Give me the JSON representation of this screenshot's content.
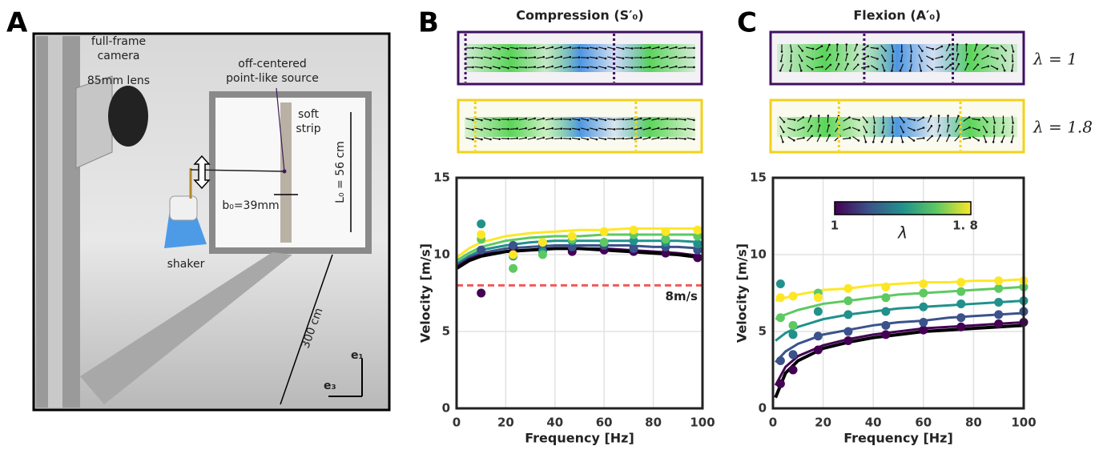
{
  "photo": {
    "panel": "A",
    "labels": [
      "full-frame",
      "camera",
      "85mm lens",
      "off-centered",
      "point-like source",
      "soft",
      "strip",
      "L₀ = 56 cm",
      "b₀=39mm",
      "shaker",
      "300 cm",
      "e₁",
      "e₃"
    ]
  },
  "chart_data": [
    {
      "type": "line",
      "panel": "B",
      "title": "Compression (S′₀)",
      "x_label": "Frequency [Hz]",
      "y_label": "Velocity [m/s]",
      "xlim": [
        0,
        100
      ],
      "xticks": [
        0,
        20,
        40,
        60,
        80,
        100
      ],
      "ylim": [
        0,
        15
      ],
      "yticks": [
        0,
        5,
        10,
        15
      ],
      "grid": true,
      "hline": 8,
      "hline_label": "8m/s",
      "hline_color": "#f05a5a",
      "x": [
        0,
        5,
        10,
        20,
        30,
        40,
        50,
        60,
        70,
        80,
        90,
        100
      ],
      "points_x": [
        10,
        23,
        35,
        47,
        60,
        72,
        85,
        98
      ],
      "series": [
        {
          "color": "#000000",
          "values": [
            9.1,
            9.6,
            9.9,
            10.2,
            10.3,
            10.4,
            10.4,
            10.3,
            10.2,
            10.1,
            10.0,
            9.8
          ]
        },
        {
          "color": "#440154",
          "values": [
            9.2,
            9.7,
            10.0,
            10.2,
            10.3,
            10.4,
            10.4,
            10.4,
            10.3,
            10.2,
            10.1,
            9.9
          ],
          "points": [
            7.5,
            10.5,
            10.4,
            10.2,
            10.3,
            10.2,
            10.1,
            9.8
          ]
        },
        {
          "color": "#3b528b",
          "values": [
            9.3,
            9.8,
            10.1,
            10.4,
            10.5,
            10.6,
            10.6,
            10.6,
            10.6,
            10.5,
            10.5,
            10.4
          ],
          "points": [
            10.3,
            10.6,
            10.6,
            10.5,
            10.6,
            10.4,
            10.5,
            10.3
          ]
        },
        {
          "color": "#21918c",
          "values": [
            9.4,
            9.9,
            10.3,
            10.6,
            10.8,
            10.9,
            10.9,
            10.9,
            10.9,
            10.9,
            10.9,
            10.8
          ],
          "points": [
            12.0,
            9.9,
            10.2,
            10.9,
            10.8,
            10.9,
            10.8,
            10.7
          ]
        },
        {
          "color": "#5ec962",
          "values": [
            9.6,
            10.1,
            10.5,
            10.9,
            11.1,
            11.2,
            11.2,
            11.3,
            11.3,
            11.3,
            11.3,
            11.3
          ],
          "points": [
            11.0,
            9.1,
            10.0,
            11.0,
            10.8,
            11.3,
            11.0,
            11.2
          ]
        },
        {
          "color": "#fde725",
          "values": [
            9.8,
            10.4,
            10.8,
            11.2,
            11.4,
            11.5,
            11.6,
            11.6,
            11.7,
            11.7,
            11.7,
            11.7
          ],
          "points": [
            11.3,
            10.0,
            10.8,
            11.2,
            11.5,
            11.6,
            11.5,
            11.6
          ]
        }
      ]
    },
    {
      "type": "line",
      "panel": "C",
      "title": "Flexion (A′₀)",
      "x_label": "Frequency [Hz]",
      "y_label": "Velocity [m/s]",
      "xlim": [
        0,
        100
      ],
      "xticks": [
        0,
        20,
        40,
        60,
        80,
        100
      ],
      "ylim": [
        0,
        15
      ],
      "yticks": [
        0,
        5,
        10,
        15
      ],
      "grid": true,
      "inset_labels": [
        "λ = 1",
        "λ = 1.8"
      ],
      "colorbar": {
        "tick_labels": [
          "1",
          "1. 8"
        ],
        "label": "λ"
      },
      "x": [
        1,
        5,
        10,
        20,
        30,
        40,
        50,
        60,
        70,
        80,
        90,
        100
      ],
      "points_x": [
        3,
        8,
        18,
        30,
        45,
        60,
        75,
        90,
        100
      ],
      "series": [
        {
          "color": "#000000",
          "values": [
            0.7,
            2.3,
            3.1,
            3.9,
            4.3,
            4.6,
            4.8,
            5.0,
            5.1,
            5.2,
            5.3,
            5.4
          ]
        },
        {
          "color": "#440154",
          "values": [
            1.5,
            2.7,
            3.4,
            4.1,
            4.5,
            4.8,
            5.0,
            5.2,
            5.3,
            5.4,
            5.5,
            5.6
          ],
          "points": [
            1.6,
            2.5,
            3.8,
            4.4,
            4.8,
            5.1,
            5.3,
            5.5,
            5.6
          ]
        },
        {
          "color": "#3b528b",
          "values": [
            3.0,
            3.7,
            4.2,
            4.8,
            5.1,
            5.4,
            5.6,
            5.7,
            5.9,
            6.0,
            6.1,
            6.2
          ],
          "points": [
            3.1,
            3.5,
            4.7,
            5.0,
            5.4,
            5.6,
            5.9,
            6.1,
            6.3
          ]
        },
        {
          "color": "#21918c",
          "values": [
            4.4,
            4.9,
            5.3,
            5.8,
            6.1,
            6.3,
            6.5,
            6.6,
            6.7,
            6.8,
            6.9,
            7.0
          ],
          "points": [
            8.1,
            4.8,
            6.3,
            6.1,
            6.3,
            6.6,
            6.8,
            6.9,
            7.0
          ]
        },
        {
          "color": "#5ec962",
          "values": [
            5.8,
            6.1,
            6.4,
            6.8,
            7.0,
            7.2,
            7.4,
            7.5,
            7.6,
            7.7,
            7.8,
            7.9
          ],
          "points": [
            5.9,
            5.4,
            7.5,
            7.0,
            7.2,
            7.5,
            7.6,
            7.8,
            7.9
          ]
        },
        {
          "color": "#fde725",
          "values": [
            7.0,
            7.2,
            7.4,
            7.7,
            7.8,
            8.0,
            8.1,
            8.2,
            8.2,
            8.3,
            8.3,
            8.4
          ],
          "points": [
            7.2,
            7.3,
            7.2,
            7.8,
            7.9,
            8.1,
            8.2,
            8.3,
            8.3
          ]
        }
      ]
    }
  ]
}
